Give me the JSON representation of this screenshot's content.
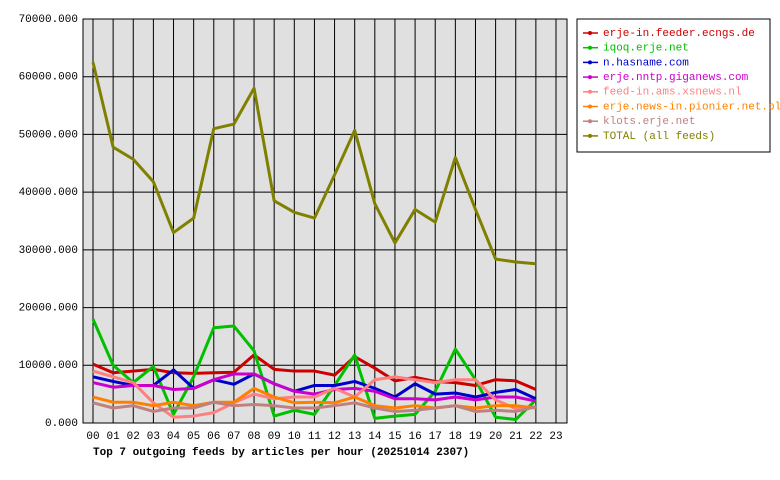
{
  "chart_data": {
    "type": "line",
    "title": "Top 7 outgoing feeds by articles per hour (20251014 2307)",
    "categories": [
      "00",
      "01",
      "02",
      "03",
      "04",
      "05",
      "06",
      "07",
      "08",
      "09",
      "10",
      "11",
      "12",
      "13",
      "14",
      "15",
      "16",
      "17",
      "18",
      "19",
      "20",
      "21",
      "22",
      "23"
    ],
    "ylim": [
      0,
      70000
    ],
    "yticks": [
      {
        "value": 0,
        "label": "0.000"
      },
      {
        "value": 10000,
        "label": "10000.000"
      },
      {
        "value": 20000,
        "label": "20000.000"
      },
      {
        "value": 30000,
        "label": "30000.000"
      },
      {
        "value": 40000,
        "label": "40000.000"
      },
      {
        "value": 50000,
        "label": "50000.000"
      },
      {
        "value": 60000,
        "label": "60000.000"
      },
      {
        "value": 70000,
        "label": "70000.000"
      }
    ],
    "grid": true,
    "legend": "right",
    "series": [
      {
        "name": "erje-in.feeder.ecngs.de",
        "color": "#cc0000",
        "values": [
          10200,
          8700,
          9000,
          9300,
          8700,
          8600,
          8700,
          8800,
          11800,
          9300,
          9000,
          9000,
          8300,
          11500,
          9500,
          7300,
          7900,
          7200,
          7000,
          6500,
          7500,
          7300,
          5800,
          null
        ]
      },
      {
        "name": "iqoq.erje.net",
        "color": "#00c000",
        "values": [
          18000,
          10000,
          7000,
          9800,
          1500,
          8000,
          16500,
          16800,
          12500,
          1200,
          2200,
          1500,
          6500,
          11800,
          800,
          1200,
          1500,
          5500,
          12800,
          7500,
          1000,
          600,
          4000,
          null
        ]
      },
      {
        "name": "n.hasname.com",
        "color": "#0000cc",
        "values": [
          8000,
          7200,
          6500,
          6500,
          9200,
          6000,
          7500,
          6700,
          8500,
          6800,
          5500,
          6500,
          6500,
          7200,
          6000,
          4500,
          6800,
          5000,
          5200,
          4500,
          5300,
          5800,
          4200,
          null
        ]
      },
      {
        "name": "erje.nntp.giganews.com",
        "color": "#cc00cc",
        "values": [
          7000,
          6200,
          6500,
          6500,
          5800,
          6000,
          7500,
          8500,
          8500,
          6800,
          5500,
          5000,
          5800,
          6000,
          5500,
          4200,
          4200,
          4000,
          4500,
          4000,
          4500,
          4500,
          3800,
          null
        ]
      },
      {
        "name": "feed-in.ams.xsnews.nl",
        "color": "#ff8080",
        "values": [
          9000,
          8000,
          7000,
          3500,
          1000,
          1200,
          1800,
          3500,
          5000,
          4200,
          4500,
          4500,
          6000,
          4500,
          7500,
          8000,
          7500,
          7000,
          7500,
          7500,
          4000,
          2500,
          2800,
          null
        ]
      },
      {
        "name": "erje.news-in.pionier.net.pl",
        "color": "#ff8000",
        "values": [
          4500,
          3600,
          3600,
          3000,
          3600,
          3000,
          3600,
          3600,
          6000,
          4500,
          3500,
          3600,
          3500,
          4500,
          3000,
          2600,
          3000,
          2600,
          3000,
          2600,
          3000,
          3000,
          2600,
          null
        ]
      },
      {
        "name": "klots.erje.net",
        "color": "#c08080",
        "values": [
          3500,
          2600,
          3000,
          2000,
          2600,
          2600,
          3600,
          3000,
          3200,
          3000,
          2600,
          2600,
          3000,
          3500,
          2600,
          2000,
          2200,
          2600,
          3000,
          2000,
          2200,
          2000,
          2800,
          null
        ]
      },
      {
        "name": "TOTAL (all feeds)",
        "color": "#808000",
        "values": [
          62500,
          47800,
          45700,
          41800,
          33000,
          35500,
          51000,
          51800,
          58000,
          38500,
          36500,
          35500,
          43000,
          50700,
          38000,
          31200,
          37000,
          34800,
          46000,
          37000,
          28400,
          27900,
          27600,
          null
        ]
      }
    ]
  }
}
